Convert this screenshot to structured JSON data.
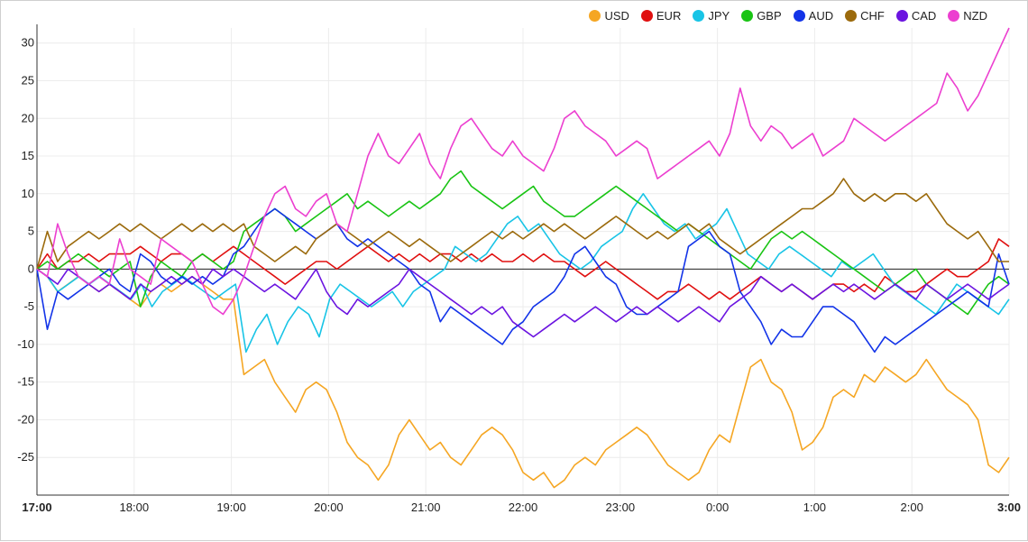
{
  "chart_data": {
    "type": "line",
    "title": "",
    "xlabel": "",
    "ylabel": "",
    "ylim": [
      -30,
      32
    ],
    "y_ticks": [
      30,
      25,
      20,
      15,
      10,
      5,
      0,
      -5,
      -10,
      -15,
      -20,
      -25
    ],
    "x_tick_labels": [
      "17:00",
      "18:00",
      "19:00",
      "20:00",
      "21:00",
      "22:00",
      "23:00",
      "0:00",
      "1:00",
      "2:00",
      "3:00"
    ],
    "x_tick_bold": [
      "17:00",
      "3:00"
    ],
    "grid": true,
    "legend_position": "top-right",
    "series": [
      {
        "name": "USD",
        "color": "#f5a623",
        "values": [
          0,
          -1,
          -3,
          -2,
          -1,
          -2,
          -3,
          -2,
          -3,
          -4,
          -5,
          -3,
          -2,
          -3,
          -2,
          -1,
          -2,
          -3,
          -4,
          -4,
          -14,
          -13,
          -12,
          -15,
          -17,
          -19,
          -16,
          -15,
          -16,
          -19,
          -23,
          -25,
          -26,
          -28,
          -26,
          -22,
          -20,
          -22,
          -24,
          -23,
          -25,
          -26,
          -24,
          -22,
          -21,
          -22,
          -24,
          -27,
          -28,
          -27,
          -29,
          -28,
          -26,
          -25,
          -26,
          -24,
          -23,
          -22,
          -21,
          -22,
          -24,
          -26,
          -27,
          -28,
          -27,
          -24,
          -22,
          -23,
          -18,
          -13,
          -12,
          -15,
          -16,
          -19,
          -24,
          -23,
          -21,
          -17,
          -16,
          -17,
          -14,
          -15,
          -13,
          -14,
          -15,
          -14,
          -12,
          -14,
          -16,
          -17,
          -18,
          -20,
          -26,
          -27,
          -25
        ]
      },
      {
        "name": "EUR",
        "color": "#e01010",
        "values": [
          0,
          2,
          0,
          1,
          1,
          2,
          1,
          2,
          2,
          2,
          3,
          2,
          1,
          2,
          2,
          1,
          2,
          1,
          2,
          3,
          2,
          1,
          0,
          -1,
          -2,
          -1,
          0,
          1,
          1,
          0,
          1,
          2,
          3,
          2,
          1,
          2,
          1,
          2,
          1,
          2,
          2,
          1,
          2,
          1,
          2,
          1,
          1,
          2,
          1,
          2,
          1,
          1,
          0,
          -1,
          0,
          1,
          0,
          -1,
          -2,
          -3,
          -4,
          -3,
          -3,
          -2,
          -3,
          -4,
          -3,
          -4,
          -3,
          -2,
          -1,
          -2,
          -3,
          -2,
          -3,
          -4,
          -3,
          -2,
          -2,
          -3,
          -2,
          -3,
          -1,
          -2,
          -3,
          -3,
          -2,
          -1,
          0,
          -1,
          -1,
          0,
          1,
          4,
          3
        ]
      },
      {
        "name": "JPY",
        "color": "#18c4e6",
        "values": [
          0,
          -1,
          -3,
          -2,
          -1,
          -2,
          -1,
          -2,
          -3,
          -4,
          -2,
          -5,
          -3,
          -2,
          -1,
          -2,
          -3,
          -4,
          -3,
          -2,
          -11,
          -8,
          -6,
          -10,
          -7,
          -5,
          -6,
          -9,
          -4,
          -2,
          -3,
          -4,
          -5,
          -4,
          -3,
          -5,
          -3,
          -2,
          -1,
          0,
          3,
          2,
          1,
          2,
          4,
          6,
          7,
          5,
          6,
          4,
          2,
          1,
          0,
          1,
          3,
          4,
          5,
          8,
          10,
          8,
          6,
          5,
          6,
          4,
          5,
          6,
          8,
          5,
          2,
          1,
          0,
          2,
          3,
          2,
          1,
          0,
          -1,
          1,
          0,
          1,
          2,
          0,
          -2,
          -3,
          -4,
          -5,
          -6,
          -4,
          -2,
          -3,
          -4,
          -5,
          -6,
          -4
        ]
      },
      {
        "name": "GBP",
        "color": "#19c414",
        "values": [
          0,
          1,
          0,
          1,
          2,
          1,
          0,
          -1,
          0,
          1,
          -5,
          -1,
          1,
          0,
          -1,
          1,
          2,
          1,
          0,
          1,
          5,
          6,
          7,
          8,
          7,
          5,
          6,
          7,
          8,
          9,
          10,
          8,
          9,
          8,
          7,
          8,
          9,
          8,
          9,
          10,
          12,
          13,
          11,
          10,
          9,
          8,
          9,
          10,
          11,
          9,
          8,
          7,
          7,
          8,
          9,
          10,
          11,
          10,
          9,
          8,
          7,
          6,
          5,
          6,
          5,
          4,
          3,
          2,
          1,
          0,
          2,
          4,
          5,
          4,
          5,
          4,
          3,
          2,
          1,
          0,
          -1,
          -2,
          -3,
          -2,
          -1,
          0,
          -2,
          -3,
          -4,
          -5,
          -6,
          -4,
          -2,
          -1,
          -2
        ]
      },
      {
        "name": "AUD",
        "color": "#1233e8",
        "values": [
          0,
          -8,
          -3,
          -4,
          -3,
          -2,
          -1,
          0,
          -2,
          -3,
          2,
          1,
          -1,
          -2,
          -1,
          -2,
          -1,
          -2,
          -1,
          2,
          3,
          5,
          7,
          8,
          7,
          6,
          5,
          4,
          5,
          6,
          4,
          3,
          4,
          3,
          2,
          1,
          0,
          -2,
          -3,
          -7,
          -5,
          -6,
          -7,
          -8,
          -9,
          -10,
          -8,
          -7,
          -5,
          -4,
          -3,
          -1,
          2,
          3,
          1,
          -1,
          -2,
          -5,
          -6,
          -6,
          -5,
          -4,
          -3,
          3,
          4,
          5,
          3,
          2,
          -3,
          -5,
          -7,
          -10,
          -8,
          -9,
          -9,
          -7,
          -5,
          -5,
          -6,
          -7,
          -9,
          -11,
          -9,
          -10,
          -9,
          -8,
          -7,
          -6,
          -5,
          -4,
          -3,
          -4,
          -5,
          2,
          -2
        ]
      },
      {
        "name": "CHF",
        "color": "#9b6a0c",
        "values": [
          0,
          5,
          1,
          3,
          4,
          5,
          4,
          5,
          6,
          5,
          6,
          5,
          4,
          5,
          6,
          5,
          6,
          5,
          6,
          5,
          6,
          3,
          2,
          1,
          2,
          3,
          2,
          4,
          5,
          6,
          5,
          4,
          3,
          4,
          5,
          4,
          3,
          4,
          3,
          2,
          1,
          2,
          3,
          4,
          5,
          4,
          5,
          4,
          5,
          6,
          5,
          6,
          5,
          4,
          5,
          6,
          7,
          6,
          5,
          4,
          5,
          4,
          5,
          6,
          5,
          6,
          4,
          3,
          2,
          3,
          4,
          5,
          6,
          7,
          8,
          8,
          9,
          10,
          12,
          10,
          9,
          10,
          9,
          10,
          10,
          9,
          10,
          8,
          6,
          5,
          4,
          5,
          3,
          1,
          1
        ]
      },
      {
        "name": "CAD",
        "color": "#6b14e0",
        "values": [
          0,
          -1,
          -2,
          0,
          -1,
          -2,
          -3,
          -2,
          -3,
          -4,
          -2,
          -3,
          -2,
          -1,
          -2,
          -1,
          -2,
          0,
          -1,
          0,
          -1,
          -2,
          -3,
          -2,
          -3,
          -4,
          -2,
          0,
          -3,
          -5,
          -6,
          -4,
          -5,
          -4,
          -3,
          -2,
          0,
          -1,
          -2,
          -3,
          -4,
          -5,
          -6,
          -5,
          -6,
          -5,
          -7,
          -8,
          -9,
          -8,
          -7,
          -6,
          -7,
          -6,
          -5,
          -6,
          -7,
          -6,
          -5,
          -6,
          -5,
          -6,
          -7,
          -6,
          -5,
          -6,
          -7,
          -5,
          -4,
          -3,
          -1,
          -2,
          -3,
          -2,
          -3,
          -4,
          -3,
          -2,
          -3,
          -2,
          -3,
          -4,
          -3,
          -2,
          -3,
          -4,
          -2,
          -3,
          -4,
          -3,
          -2,
          -3,
          -4,
          -3,
          -2
        ]
      },
      {
        "name": "NZD",
        "color": "#ec3fd0",
        "values": [
          0,
          -1,
          6,
          2,
          -1,
          -2,
          -1,
          -2,
          4,
          0,
          -1,
          -2,
          4,
          3,
          2,
          1,
          -2,
          -5,
          -6,
          -4,
          -1,
          3,
          7,
          10,
          11,
          8,
          7,
          9,
          10,
          6,
          5,
          10,
          15,
          18,
          15,
          14,
          16,
          18,
          14,
          12,
          16,
          19,
          20,
          18,
          16,
          15,
          17,
          15,
          14,
          13,
          16,
          20,
          21,
          19,
          18,
          17,
          15,
          16,
          17,
          16,
          12,
          13,
          14,
          15,
          16,
          17,
          15,
          18,
          24,
          19,
          17,
          19,
          18,
          16,
          17,
          18,
          15,
          16,
          17,
          20,
          19,
          18,
          17,
          18,
          19,
          20,
          21,
          22,
          26,
          24,
          21,
          23,
          26,
          29,
          32
        ]
      }
    ]
  }
}
